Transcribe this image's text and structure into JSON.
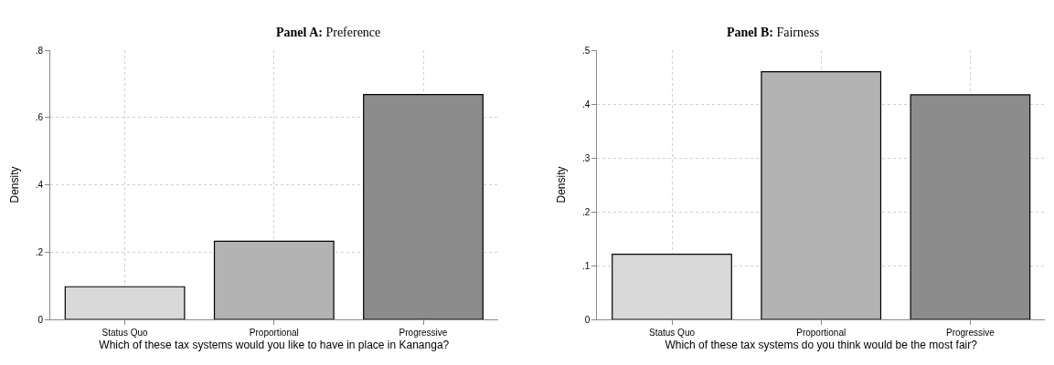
{
  "chart_data": [
    {
      "type": "bar",
      "title": "Panel A: Preference",
      "xlabel": "Which of these tax systems would you like to have in place in Kananga?",
      "ylabel": "Density",
      "categories": [
        "Status Quo",
        "Proportional",
        "Progressive"
      ],
      "values": [
        0.097,
        0.232,
        0.668
      ],
      "colors": [
        "#d9d9d9",
        "#b3b3b3",
        "#8c8c8c"
      ],
      "ylim": [
        0,
        0.8
      ],
      "yticks": [
        0,
        {
          "value": 0.2,
          "label": ".2"
        },
        {
          "value": 0.4,
          "label": ".4"
        },
        {
          "value": 0.6,
          "label": ".6"
        },
        {
          "value": 0.8,
          "label": ".8"
        }
      ],
      "grid": true
    },
    {
      "type": "bar",
      "title": "Panel B: Fairness",
      "xlabel": "Which of these tax systems do you think would be the most fair?",
      "ylabel": "Density",
      "categories": [
        "Status Quo",
        "Proportional",
        "Progressive"
      ],
      "values": [
        0.121,
        0.46,
        0.417
      ],
      "colors": [
        "#d9d9d9",
        "#b3b3b3",
        "#8c8c8c"
      ],
      "ylim": [
        0,
        0.5
      ],
      "yticks": [
        0,
        {
          "value": 0.1,
          "label": ".1"
        },
        {
          "value": 0.2,
          "label": ".2"
        },
        {
          "value": 0.3,
          "label": ".3"
        },
        {
          "value": 0.4,
          "label": ".4"
        },
        {
          "value": 0.5,
          "label": ".5"
        }
      ],
      "grid": true
    }
  ]
}
